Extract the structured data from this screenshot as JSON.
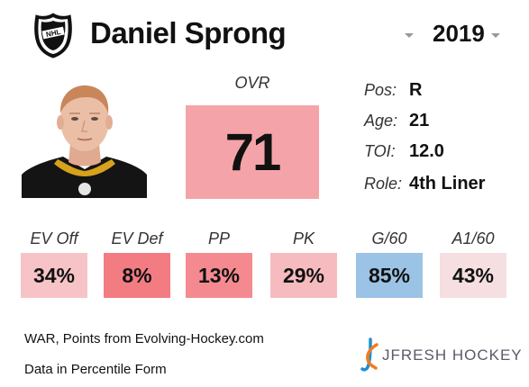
{
  "header": {
    "player_name": "Daniel Sprong",
    "season": "2019",
    "league_logo_icon": "nhl-shield-icon"
  },
  "ovr": {
    "label": "OVR",
    "value": "71",
    "color": "#f4a4a8"
  },
  "info": [
    {
      "label": "Pos:",
      "value": "R"
    },
    {
      "label": "Age:",
      "value": "21"
    },
    {
      "label": "TOI:",
      "value": "12.0"
    },
    {
      "label": "Role:",
      "value": "4th Liner"
    }
  ],
  "stats": [
    {
      "label": "EV Off",
      "value": "34%",
      "color": "#f6c4c7"
    },
    {
      "label": "EV Def",
      "value": "8%",
      "color": "#f37c83"
    },
    {
      "label": "PP",
      "value": "13%",
      "color": "#f48a90"
    },
    {
      "label": "PK",
      "value": "29%",
      "color": "#f5bbbf"
    },
    {
      "label": "G/60",
      "value": "85%",
      "color": "#9bc3e6"
    },
    {
      "label": "A1/60",
      "value": "43%",
      "color": "#f5dfe0"
    }
  ],
  "footer": {
    "line1": "WAR, Points from Evolving-Hockey.com",
    "line2": "Data in Percentile Form"
  },
  "brand": {
    "text": "JFRESH HOCKEY",
    "icon": "jfresh-hockey-logo-icon"
  }
}
